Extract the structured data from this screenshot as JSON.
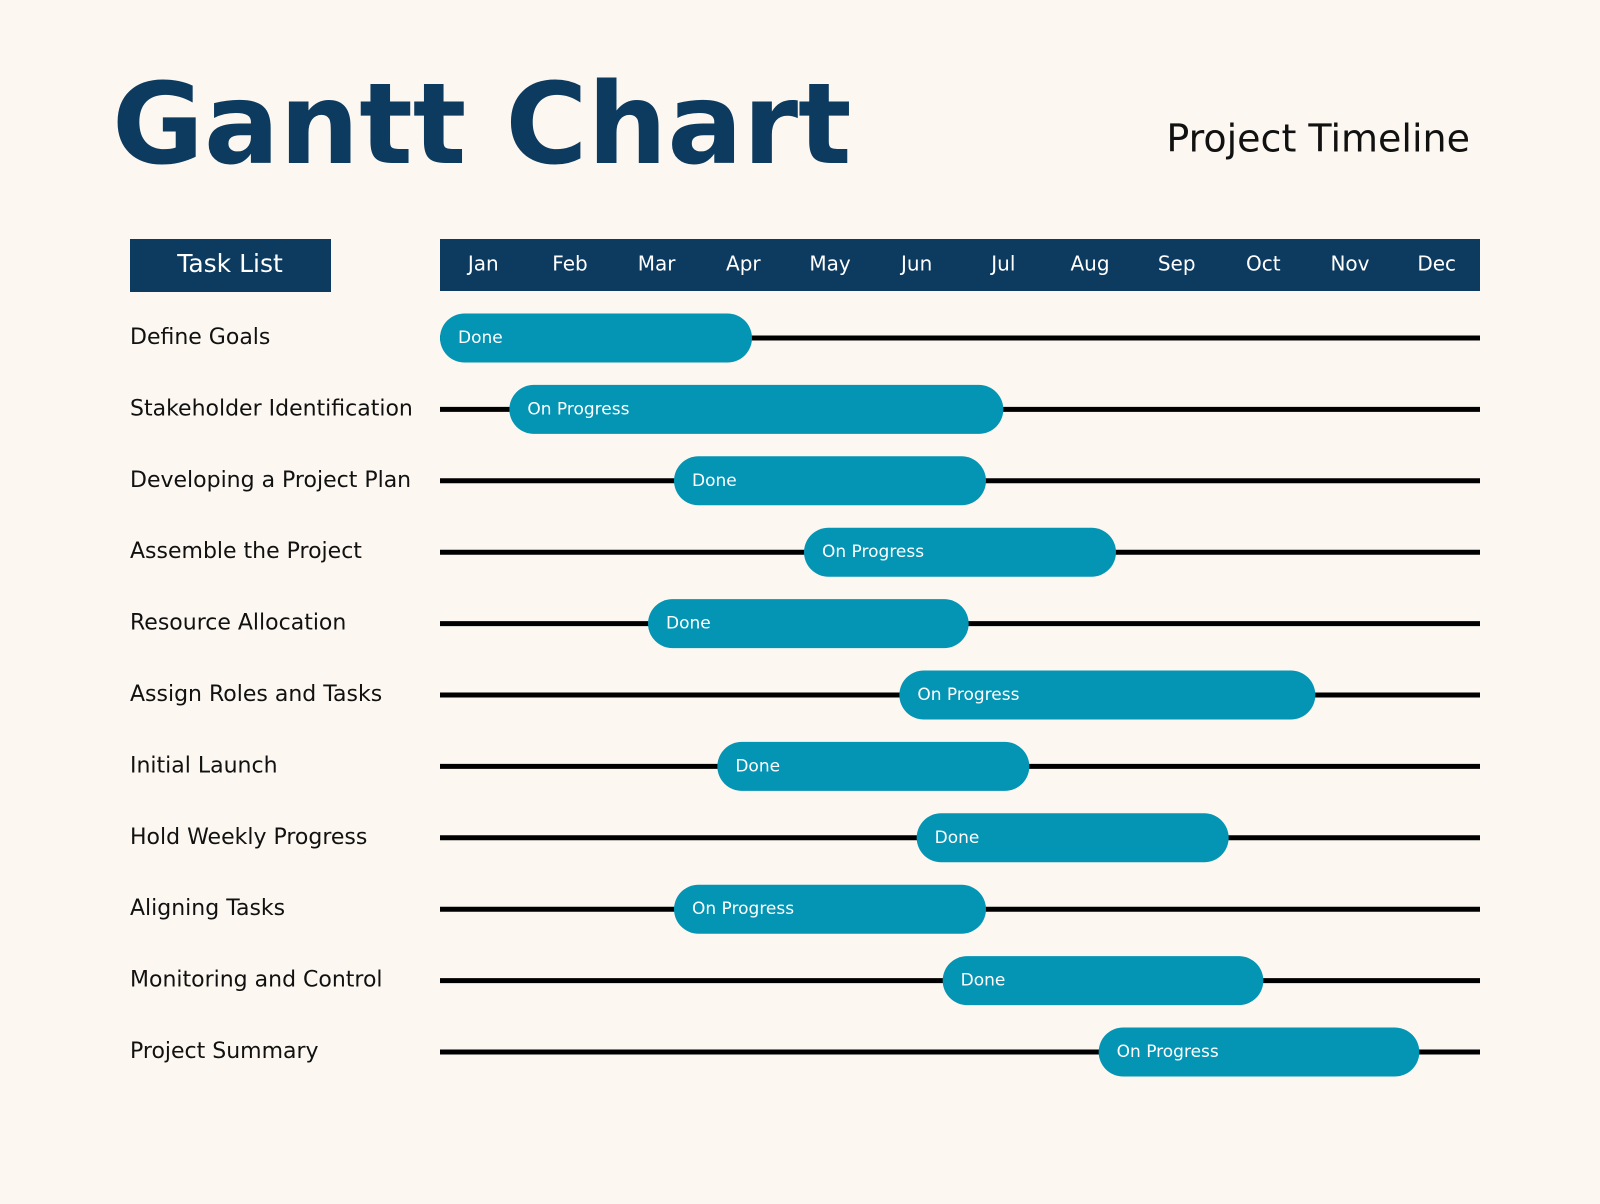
{
  "chart_data": {
    "type": "gantt",
    "title": "Gantt Chart",
    "subtitle": "Project Timeline",
    "task_header": "Task List",
    "months": [
      "Jan",
      "Feb",
      "Mar",
      "Apr",
      "May",
      "Jun",
      "Jul",
      "Aug",
      "Sep",
      "Oct",
      "Nov",
      "Dec"
    ],
    "xlim": [
      0,
      12
    ],
    "color": "#0494b4",
    "header_color": "#0d3a5f",
    "tasks": [
      {
        "name": "Define Goals",
        "start": 0,
        "end": 3.6,
        "status": "Done"
      },
      {
        "name": "Stakeholder Identification",
        "start": 0.8,
        "end": 6.5,
        "status": "On Progress"
      },
      {
        "name": "Developing a Project Plan",
        "start": 2.7,
        "end": 6.3,
        "status": "Done"
      },
      {
        "name": "Assemble the Project",
        "start": 4.2,
        "end": 7.8,
        "status": "On Progress"
      },
      {
        "name": "Resource Allocation",
        "start": 2.4,
        "end": 6.1,
        "status": "Done"
      },
      {
        "name": "Assign Roles and Tasks",
        "start": 5.3,
        "end": 10.1,
        "status": "On Progress"
      },
      {
        "name": "Initial Launch",
        "start": 3.2,
        "end": 6.8,
        "status": "Done"
      },
      {
        "name": "Hold Weekly Progress",
        "start": 5.5,
        "end": 9.1,
        "status": "Done"
      },
      {
        "name": "Aligning Tasks",
        "start": 2.7,
        "end": 6.3,
        "status": "On Progress"
      },
      {
        "name": "Monitoring and Control",
        "start": 5.8,
        "end": 9.5,
        "status": "Done"
      },
      {
        "name": "Project Summary",
        "start": 7.6,
        "end": 11.3,
        "status": "On Progress"
      }
    ]
  }
}
